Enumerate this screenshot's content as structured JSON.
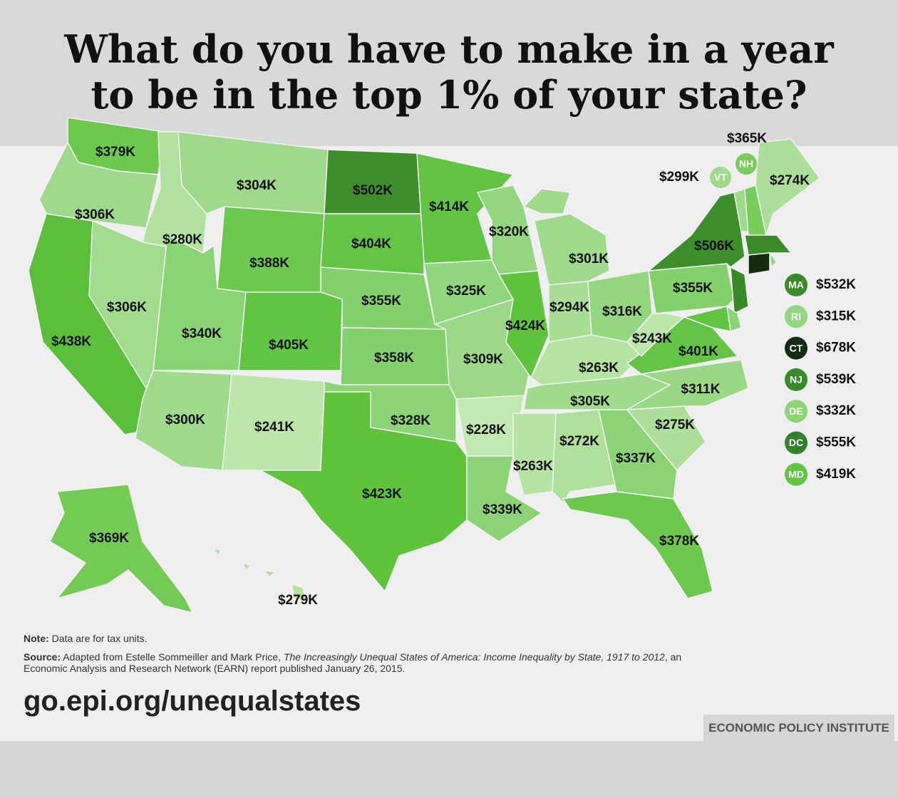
{
  "title": [
    "What do you have to make in a year",
    "to be in the top 1% of your state?"
  ],
  "states": [
    {
      "label": "$379K",
      "color": "#6dc94e"
    },
    {
      "label": "$306K",
      "color": "#9fd98b"
    },
    {
      "label": "$438K",
      "color": "#5cbf3c"
    },
    {
      "label": "$280K",
      "color": "#b2e09e"
    },
    {
      "label": "$306K",
      "color": "#a3db8f"
    },
    {
      "label": "$304K",
      "color": "#9fd98b"
    },
    {
      "label": "$388K",
      "color": "#6cc94d"
    },
    {
      "label": "$340K",
      "color": "#8bd476"
    },
    {
      "label": "$405K",
      "color": "#61c442"
    },
    {
      "label": "$300K",
      "color": "#a0da8c"
    },
    {
      "label": "$241K",
      "color": "#bde6ab"
    },
    {
      "label": "$502K",
      "color": "#3e8e2c"
    },
    {
      "label": "$404K",
      "color": "#64c445"
    },
    {
      "label": "$355K",
      "color": "#84d06d"
    },
    {
      "label": "$358K",
      "color": "#84d06d"
    },
    {
      "label": "$328K",
      "color": "#8dd378"
    },
    {
      "label": "$423K",
      "color": "#5fc33c"
    },
    {
      "label": "$414K",
      "color": "#63c444"
    },
    {
      "label": "$325K",
      "color": "#91d57c"
    },
    {
      "label": "$309K",
      "color": "#9cd888"
    },
    {
      "label": "$228K",
      "color": "#c3e9b3"
    },
    {
      "label": "$339K",
      "color": "#8bd376"
    },
    {
      "label": "$320K",
      "color": "#94d680"
    },
    {
      "label": "$424K",
      "color": "#5fc33c"
    },
    {
      "label": "$301K",
      "color": "#a0da8c"
    },
    {
      "label": "$294K",
      "color": "#a8dd94"
    },
    {
      "label": "$316K",
      "color": "#95d681"
    },
    {
      "label": "$263K",
      "color": "#b5e3a2"
    },
    {
      "label": "$305K",
      "color": "#a0da8c"
    },
    {
      "label": "$263K",
      "color": "#b5e3a2"
    },
    {
      "label": "$272K",
      "color": "#afe09b"
    },
    {
      "label": "$337K",
      "color": "#8bd376"
    },
    {
      "label": "$378K",
      "color": "#6dc94e"
    },
    {
      "label": "$275K",
      "color": "#aedf9a"
    },
    {
      "label": "$311K",
      "color": "#9ad886"
    },
    {
      "label": "$401K",
      "color": "#64c445"
    },
    {
      "label": "$243K",
      "color": "#bde6ab"
    },
    {
      "label": "$355K",
      "color": "#84d06d"
    },
    {
      "label": "$506K",
      "color": "#3e8e2c"
    },
    {
      "label": "$274K",
      "color": "#aedf9a"
    },
    {
      "label": "$369K",
      "color": "#73cb55"
    },
    {
      "label": "$279K",
      "color": "#b2e09e"
    }
  ],
  "callouts": [
    {
      "abbr": "VT",
      "label": "$299K",
      "color": "#a0da8c"
    },
    {
      "abbr": "NH",
      "label": "$365K",
      "color": "#79cd5b"
    }
  ],
  "legend": [
    {
      "abbr": "MA",
      "label": "$532K",
      "color": "#3c8a2a"
    },
    {
      "abbr": "RI",
      "label": "$315K",
      "color": "#95d681"
    },
    {
      "abbr": "CT",
      "label": "$678K",
      "color": "#142d12"
    },
    {
      "abbr": "NJ",
      "label": "$539K",
      "color": "#3a8a29"
    },
    {
      "abbr": "DE",
      "label": "$332K",
      "color": "#8dd378"
    },
    {
      "abbr": "DC",
      "label": "$555K",
      "color": "#35802a"
    },
    {
      "abbr": "MD",
      "label": "$419K",
      "color": "#62c443"
    }
  ],
  "note": {
    "label": "Note:",
    "text": "Data are for tax units."
  },
  "source": {
    "label": "Source:",
    "text": "Adapted from Estelle Sommeiller and Mark Price,",
    "title": "The Increasingly Unequal States of America: Income Inequality by State, 1917 to 2012",
    "text2": ", an Economic Analysis and Research Network (EARN) report published January 26, 2015."
  },
  "url": "go.epi.org/unequalstates",
  "publisher": "ECONOMIC POLICY INSTITUTE"
}
